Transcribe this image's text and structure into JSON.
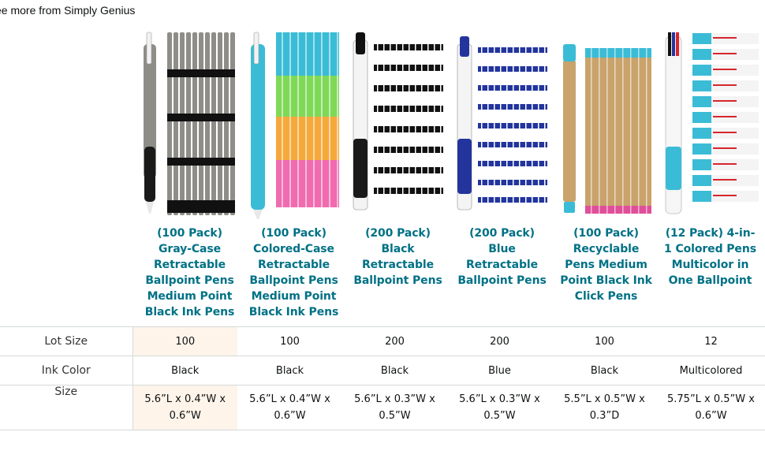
{
  "header": {
    "see_more": "ee more from Simply Genius"
  },
  "products": [
    {
      "title": "(100 Pack) Gray-Case Retractable Ballpoint Pens Medium Point Black Ink Pens",
      "image": "gray-ballpoint-pens-image"
    },
    {
      "title": "(100 Pack) Colored-Case Retractable Ballpoint Pens Medium Point Black Ink Pens",
      "image": "colored-ballpoint-pens-image"
    },
    {
      "title": "(200 Pack) Black Retractable Ballpoint Pens",
      "image": "black-ballpoint-pens-image"
    },
    {
      "title": "(200 Pack) Blue Retractable Ballpoint Pens",
      "image": "blue-ballpoint-pens-image"
    },
    {
      "title": "(100 Pack) Recyclable Pens Medium Point Black Ink Click Pens",
      "image": "recyclable-pens-image"
    },
    {
      "title": "(12 Pack) 4-in-1 Colored Pens Multicolor in One Ballpoint",
      "image": "multicolor-pens-image"
    }
  ],
  "comparison": {
    "rows": [
      {
        "label": "Lot Size",
        "values": [
          "100",
          "100",
          "200",
          "200",
          "100",
          "12"
        ]
      },
      {
        "label": "Ink Color",
        "values": [
          "Black",
          "Black",
          "Black",
          "Blue",
          "Black",
          "Multicolored"
        ]
      },
      {
        "label": "Size",
        "values": [
          "5.6”L x 0.4”W x 0.6”W",
          "5.6”L x 0.4”W x 0.6”W",
          "5.6”L x 0.3”W x 0.5”W",
          "5.6”L x 0.3”W x 0.5”W",
          "5.5”L x 0.5”W x 0.3”D",
          "5.75”L x 0.5”W x 0.6”W"
        ]
      }
    ]
  },
  "colors": {
    "link": "#007185",
    "highlight": "#fef4ea",
    "border": "#d5d9d9"
  }
}
